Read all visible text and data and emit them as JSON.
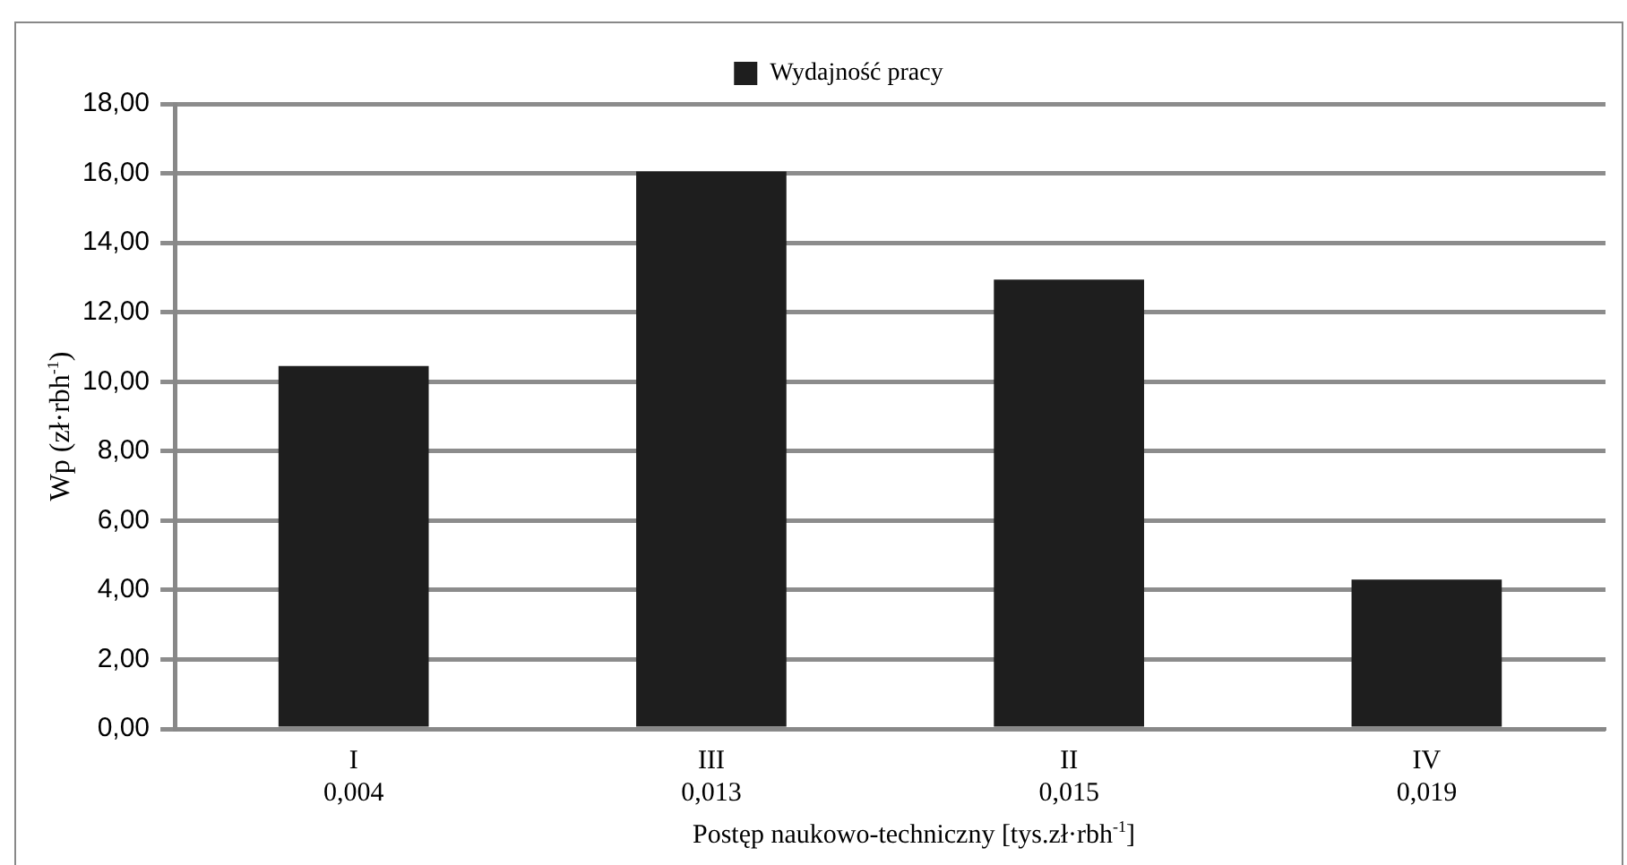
{
  "chart_data": {
    "type": "bar",
    "xlabel": "Postęp naukowo-techniczny [tys.zł·rbh$^{-1}$]",
    "ylabel": "Wp (zł·rbh$^{-1}$)",
    "categories": [
      "I\n0,004",
      "III\n0,013",
      "II\n0,015",
      "IV\n0,019"
    ],
    "series": [
      {
        "name": "Wydajność pracy",
        "color": "#1e1e1e",
        "values": [
          10.45,
          16.05,
          12.94,
          4.3
        ]
      }
    ],
    "ylim": [
      0,
      18
    ],
    "yticks": [
      {
        "value": 0,
        "label": "0,00"
      },
      {
        "value": 2,
        "label": "2,00"
      },
      {
        "value": 4,
        "label": "4,00"
      },
      {
        "value": 6,
        "label": "6,00"
      },
      {
        "value": 8,
        "label": "8,00"
      },
      {
        "value": 10,
        "label": "10,00"
      },
      {
        "value": 12,
        "label": "12,00"
      },
      {
        "value": 14,
        "label": "14,00"
      },
      {
        "value": 16,
        "label": "16,00"
      },
      {
        "value": 18,
        "label": "18,00"
      }
    ],
    "grid": "y",
    "legend": "top"
  }
}
